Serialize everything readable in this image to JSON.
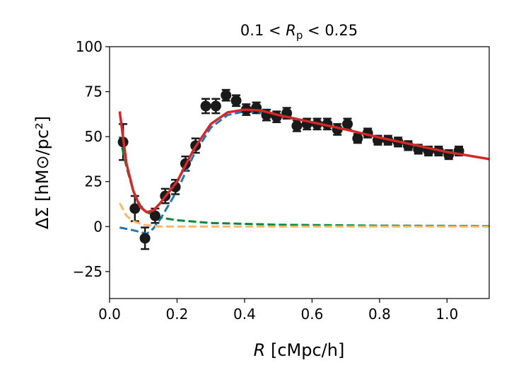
{
  "chart_data": {
    "type": "scatter",
    "title": "0.1 < R_p < 0.25",
    "title_parts": {
      "pre": "0.1 < ",
      "var": "R",
      "sub": "p",
      "post": " < 0.25"
    },
    "xlabel": "R [cMpc/h]",
    "xlabel_parts": {
      "var": "R",
      "rest": " [cMpc/h]"
    },
    "ylabel": "ΔΣ [hM⊙/pc²]",
    "xlim": [
      0,
      1.125
    ],
    "ylim": [
      -40,
      100
    ],
    "xticks": [
      0.0,
      0.2,
      0.4,
      0.6,
      0.8,
      1.0
    ],
    "xtick_labels": [
      "0.0",
      "0.2",
      "0.4",
      "0.6",
      "0.8",
      "1.0"
    ],
    "yticks": [
      -25,
      0,
      25,
      50,
      75,
      100
    ],
    "ytick_labels": [
      "−25",
      "0",
      "25",
      "50",
      "75",
      "100"
    ],
    "grid": false,
    "points": {
      "color": "#1a1a1a",
      "x": [
        0.04,
        0.075,
        0.105,
        0.135,
        0.165,
        0.195,
        0.225,
        0.255,
        0.285,
        0.315,
        0.345,
        0.375,
        0.405,
        0.435,
        0.465,
        0.495,
        0.525,
        0.555,
        0.585,
        0.615,
        0.645,
        0.675,
        0.705,
        0.735,
        0.765,
        0.795,
        0.825,
        0.855,
        0.885,
        0.915,
        0.945,
        0.975,
        1.005,
        1.035
      ],
      "y": [
        47,
        10,
        -6.5,
        6,
        17,
        22,
        35,
        45,
        67,
        67,
        73,
        70,
        65,
        66,
        62,
        61,
        63,
        56,
        57,
        57,
        57,
        54,
        57,
        49,
        52,
        48,
        48,
        47,
        45,
        43,
        42,
        42,
        40,
        42
      ],
      "err": [
        10,
        7,
        6,
        4,
        4,
        4,
        4,
        4,
        4,
        4,
        3,
        3,
        3,
        3,
        3,
        3,
        3,
        3,
        3,
        3,
        3,
        3,
        3,
        2.5,
        2.5,
        2.5,
        2.5,
        2.5,
        2.5,
        2.5,
        2.5,
        2.5,
        2.5,
        2.5
      ]
    },
    "curves": [
      {
        "color": "#1f77b4",
        "style": "dashed",
        "x": [
          0.03,
          0.07,
          0.11,
          0.13,
          0.15,
          0.2,
          0.25,
          0.3,
          0.35,
          0.4,
          0.45,
          0.5,
          0.6,
          0.7,
          0.8,
          0.9,
          1.0,
          1.125
        ],
        "y": [
          -0.5,
          -2,
          -4,
          -1,
          4,
          20,
          40,
          55,
          62,
          64,
          63.5,
          61.5,
          58,
          54,
          49.5,
          45.5,
          41.5,
          37.5
        ]
      },
      {
        "color": "#008837",
        "style": "dashed",
        "x": [
          0.03,
          0.05,
          0.07,
          0.09,
          0.11,
          0.15,
          0.2,
          0.3,
          0.5,
          0.8,
          1.125
        ],
        "y": [
          50,
          33,
          20,
          12,
          8,
          5,
          3.5,
          2,
          1,
          0.5,
          0.3
        ]
      },
      {
        "color": "#fdb863",
        "style": "dashed",
        "x": [
          0.03,
          0.05,
          0.07,
          0.1,
          0.15,
          0.5,
          1.125
        ],
        "y": [
          13,
          6,
          3,
          1,
          0,
          0,
          0
        ]
      },
      {
        "color": "#d62728",
        "style": "solid",
        "x": [
          0.03,
          0.05,
          0.07,
          0.09,
          0.11,
          0.13,
          0.15,
          0.2,
          0.25,
          0.3,
          0.35,
          0.4,
          0.45,
          0.5,
          0.6,
          0.7,
          0.8,
          0.9,
          1.0,
          1.125
        ],
        "y": [
          64,
          35,
          20,
          11,
          8,
          9,
          13,
          25,
          43,
          57,
          63.5,
          65,
          64.5,
          62,
          58,
          54,
          49.5,
          45.5,
          41.5,
          37.5
        ]
      }
    ]
  }
}
